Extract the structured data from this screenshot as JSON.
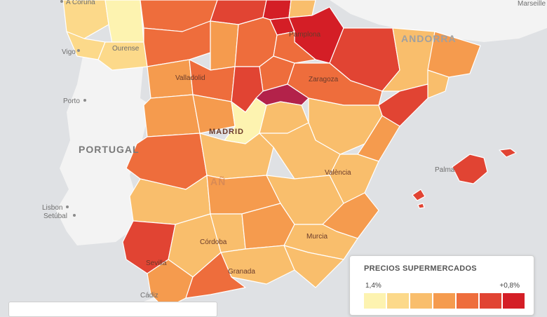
{
  "map": {
    "country_labels": {
      "portugal": "PORTUGAL",
      "andorra": "ANDORRA",
      "espana_fragment": "AÑ"
    },
    "city_labels": {
      "a_coruna": "A Coruña",
      "marseille": "Marseille",
      "ourense": "Ourense",
      "vigo": "Vigo",
      "porto": "Porto",
      "lisbon": "Lisbon",
      "setubal": "Setúbal",
      "valladolid": "Valladolid",
      "zaragoza": "Zaragoza",
      "madrid": "MADRID",
      "valencia": "València",
      "palma": "Palma",
      "murcia": "Murcia",
      "cordoba": "Córdoba",
      "sevilla": "Sevilla",
      "granada": "Granada",
      "cadiz": "Cádiz",
      "pamplona": "Pamplona"
    },
    "colors": {
      "sea": "#dfe1e4",
      "land_outside": "#f3f3f3",
      "border": "#ffffff"
    }
  },
  "legend": {
    "title": "PRECIOS SUPERMERCADOS",
    "min_label": "1,4%",
    "max_label": "+0,8%",
    "scale_colors": [
      "#fdf3b0",
      "#fcd98a",
      "#f9be6c",
      "#f59b4e",
      "#ee6d3c",
      "#e14433",
      "#d41e26"
    ]
  }
}
